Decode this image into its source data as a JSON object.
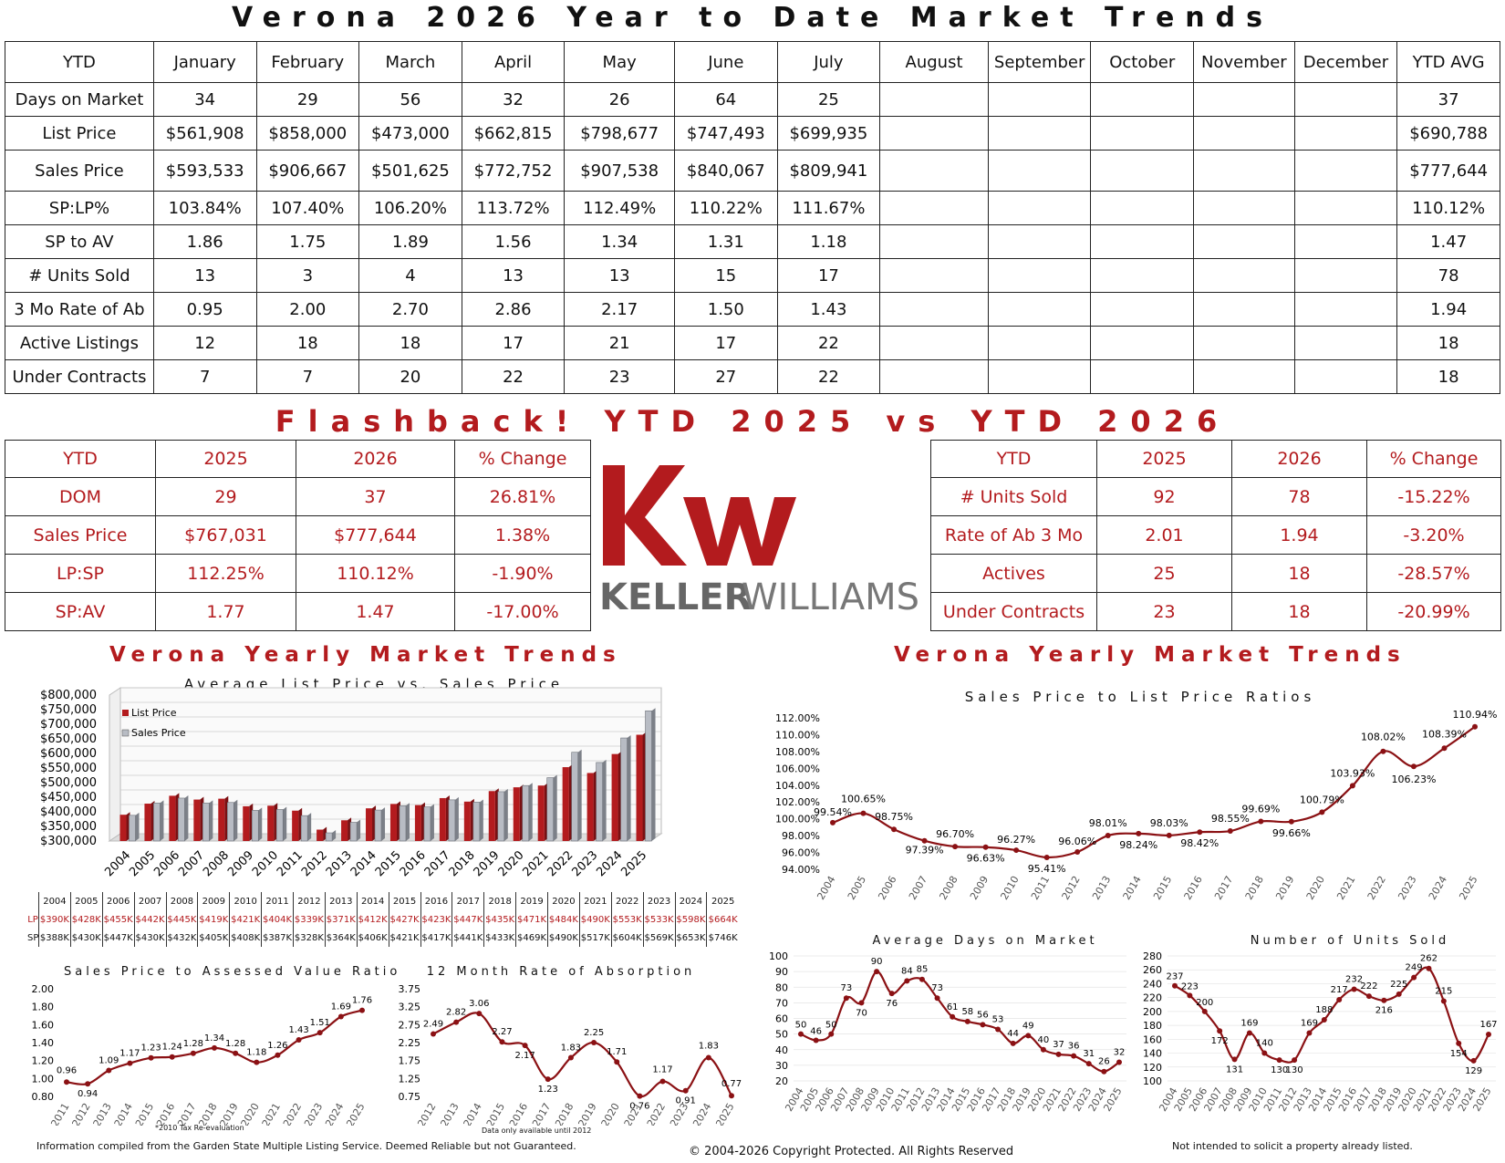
{
  "page_title": "Verona 2026 Year to Date Market Trends",
  "ytd_table": {
    "headers": [
      "YTD",
      "January",
      "February",
      "March",
      "April",
      "May",
      "June",
      "July",
      "August",
      "September",
      "October",
      "November",
      "December",
      "YTD AVG"
    ],
    "rows": [
      [
        "Days on Market",
        "34",
        "29",
        "56",
        "32",
        "26",
        "64",
        "25",
        "",
        "",
        "",
        "",
        "",
        "37"
      ],
      [
        "List Price",
        "$561,908",
        "$858,000",
        "$473,000",
        "$662,815",
        "$798,677",
        "$747,493",
        "$699,935",
        "",
        "",
        "",
        "",
        "",
        "$690,788"
      ],
      [
        "Sales Price",
        "$593,533",
        "$906,667",
        "$501,625",
        "$772,752",
        "$907,538",
        "$840,067",
        "$809,941",
        "",
        "",
        "",
        "",
        "",
        "$777,644"
      ],
      [
        "SP:LP%",
        "103.84%",
        "107.40%",
        "106.20%",
        "113.72%",
        "112.49%",
        "110.22%",
        "111.67%",
        "",
        "",
        "",
        "",
        "",
        "110.12%"
      ],
      [
        "SP to AV",
        "1.86",
        "1.75",
        "1.89",
        "1.56",
        "1.34",
        "1.31",
        "1.18",
        "",
        "",
        "",
        "",
        "",
        "1.47"
      ],
      [
        "# Units Sold",
        "13",
        "3",
        "4",
        "13",
        "13",
        "15",
        "17",
        "",
        "",
        "",
        "",
        "",
        "78"
      ],
      [
        "3 Mo Rate of Ab",
        "0.95",
        "2.00",
        "2.70",
        "2.86",
        "2.17",
        "1.50",
        "1.43",
        "",
        "",
        "",
        "",
        "",
        "1.94"
      ],
      [
        "Active Listings",
        "12",
        "18",
        "18",
        "17",
        "21",
        "17",
        "22",
        "",
        "",
        "",
        "",
        "",
        "18"
      ],
      [
        "Under Contracts",
        "7",
        "7",
        "20",
        "22",
        "23",
        "27",
        "22",
        "",
        "",
        "",
        "",
        "",
        "18"
      ]
    ]
  },
  "flashback_title": "Flashback!  YTD 2025 vs YTD 2026",
  "left_compare": {
    "headers": [
      "YTD",
      "2025",
      "2026",
      "% Change"
    ],
    "rows": [
      [
        "DOM",
        "29",
        "37",
        "26.81%"
      ],
      [
        "Sales Price",
        "$767,031",
        "$777,644",
        "1.38%"
      ],
      [
        "LP:SP",
        "112.25%",
        "110.12%",
        "-1.90%"
      ],
      [
        "SP:AV",
        "1.77",
        "1.47",
        "-17.00%"
      ]
    ]
  },
  "right_compare": {
    "headers": [
      "YTD",
      "2025",
      "2026",
      "% Change"
    ],
    "rows": [
      [
        "# Units Sold",
        "92",
        "78",
        "-15.22%"
      ],
      [
        "Rate of Ab 3 Mo",
        "2.01",
        "1.94",
        "-3.20%"
      ],
      [
        "Actives",
        "25",
        "18",
        "-28.57%"
      ],
      [
        "Under Contracts",
        "23",
        "18",
        "-20.99%"
      ]
    ]
  },
  "logo": {
    "text_bold": "KELLER",
    "text_light": "WILLIAMS",
    "mark": "kw",
    "color": "#b31b1e"
  },
  "yearly_title_left": "Verona Yearly Market Trends",
  "yearly_title_right": "Verona Yearly Market Trends",
  "price_table": {
    "years": [
      "2004",
      "2005",
      "2006",
      "2007",
      "2008",
      "2009",
      "2010",
      "2011",
      "2012",
      "2013",
      "2014",
      "2015",
      "2016",
      "2017",
      "2018",
      "2019",
      "2020",
      "2021",
      "2022",
      "2023",
      "2024",
      "2025"
    ],
    "lp_label": "LP",
    "sp_label": "SP",
    "lp": [
      "$390K",
      "$428K",
      "$455K",
      "$442K",
      "$445K",
      "$419K",
      "$421K",
      "$404K",
      "$339K",
      "$371K",
      "$412K",
      "$427K",
      "$423K",
      "$447K",
      "$435K",
      "$471K",
      "$484K",
      "$490K",
      "$553K",
      "$533K",
      "$598K",
      "$664K"
    ],
    "sp": [
      "$388K",
      "$430K",
      "$447K",
      "$430K",
      "$432K",
      "$405K",
      "$408K",
      "$387K",
      "$328K",
      "$364K",
      "$406K",
      "$421K",
      "$417K",
      "$441K",
      "$433K",
      "$469K",
      "$490K",
      "$517K",
      "$604K",
      "$569K",
      "$653K",
      "$746K"
    ]
  },
  "colors": {
    "red": "#b31b1e",
    "gray": "#b8bcc4",
    "line": "#8b1114"
  },
  "chart_data": [
    {
      "type": "bar",
      "title": "Average List Price vs. Sales Price",
      "categories": [
        "2004",
        "2005",
        "2006",
        "2007",
        "2008",
        "2009",
        "2010",
        "2011",
        "2012",
        "2013",
        "2014",
        "2015",
        "2016",
        "2017",
        "2018",
        "2019",
        "2020",
        "2021",
        "2022",
        "2023",
        "2024",
        "2025"
      ],
      "series": [
        {
          "name": "List Price",
          "values": [
            390,
            428,
            455,
            442,
            445,
            419,
            421,
            404,
            339,
            371,
            412,
            427,
            423,
            447,
            435,
            471,
            484,
            490,
            553,
            533,
            598,
            664
          ]
        },
        {
          "name": "Sales Price",
          "values": [
            388,
            430,
            447,
            430,
            432,
            405,
            408,
            387,
            328,
            364,
            406,
            421,
            417,
            441,
            433,
            469,
            490,
            517,
            604,
            569,
            653,
            746
          ]
        }
      ],
      "ylim": [
        300,
        800
      ],
      "yticks": [
        "$300,000",
        "$350,000",
        "$400,000",
        "$450,000",
        "$500,000",
        "$550,000",
        "$600,000",
        "$650,000",
        "$700,000",
        "$750,000",
        "$800,000"
      ],
      "legend": "top-left"
    },
    {
      "type": "line",
      "title": "Sales Price to List Price Ratios",
      "x": [
        "2004",
        "2005",
        "2006",
        "2007",
        "2008",
        "2009",
        "2010",
        "2011",
        "2012",
        "2013",
        "2014",
        "2015",
        "2016",
        "2017",
        "2018",
        "2019",
        "2020",
        "2021",
        "2022",
        "2023",
        "2024",
        "2025"
      ],
      "values": [
        99.54,
        100.65,
        98.75,
        97.39,
        96.7,
        96.63,
        96.27,
        95.41,
        96.06,
        98.01,
        98.24,
        98.03,
        98.42,
        98.55,
        99.69,
        99.66,
        100.79,
        103.93,
        108.02,
        106.23,
        108.39,
        110.94
      ],
      "labels": [
        "99.54%",
        "100.65%",
        "98.75%",
        "97.39%",
        "96.70%",
        "96.63%",
        "96.27%",
        "95.41%",
        "96.06%",
        "98.01%",
        "98.24%",
        "98.03%",
        "98.42%",
        "98.55%",
        "99.69%",
        "99.66%",
        "100.79%",
        "103.93%",
        "108.02%",
        "106.23%",
        "108.39%",
        "110.94%"
      ],
      "ylim": [
        94,
        112
      ],
      "yticks": [
        "94.00%",
        "96.00%",
        "98.00%",
        "100.00%",
        "102.00%",
        "104.00%",
        "106.00%",
        "108.00%",
        "110.00%",
        "112.00%"
      ]
    },
    {
      "type": "line",
      "title": "Sales Price to Assessed Value Ratio",
      "x": [
        "2011",
        "2012",
        "2013",
        "2014",
        "2015",
        "2016",
        "2017",
        "2018",
        "2019",
        "2020",
        "2021",
        "2022",
        "2023",
        "2024",
        "2025"
      ],
      "values": [
        0.96,
        0.94,
        1.09,
        1.17,
        1.23,
        1.24,
        1.28,
        1.34,
        1.28,
        1.18,
        1.26,
        1.43,
        1.51,
        1.69,
        1.76
      ],
      "labels": [
        "0.96",
        "0.94",
        "1.09",
        "1.17",
        "1.23",
        "1.24",
        "1.28",
        "1.34",
        "1.28",
        "1.18",
        "1.26",
        "1.43",
        "1.51",
        "1.69",
        "1.76"
      ],
      "ylim": [
        0.8,
        2.0
      ],
      "yticks": [
        "0.80",
        "1.00",
        "1.20",
        "1.40",
        "1.60",
        "1.80",
        "2.00"
      ],
      "note": "*2010 Tax Re-evaluation"
    },
    {
      "type": "line",
      "title": "12 Month Rate of Absorption",
      "x": [
        "2012",
        "2013",
        "2014",
        "2015",
        "2016",
        "2017",
        "2018",
        "2019",
        "2020",
        "2021",
        "2022",
        "2023",
        "2024",
        "2025"
      ],
      "values": [
        2.49,
        2.82,
        3.06,
        2.27,
        2.17,
        1.23,
        1.83,
        2.25,
        1.71,
        0.76,
        1.17,
        0.91,
        1.83,
        0.77
      ],
      "labels": [
        "2.49",
        "2.82",
        "3.06",
        "2.27",
        "2.17",
        "1.23",
        "1.83",
        "2.25",
        "1.71",
        "0.76",
        "1.17",
        "0.91",
        "1.83",
        "0.77"
      ],
      "ylim": [
        0.75,
        3.75
      ],
      "yticks": [
        "0.75",
        "1.25",
        "1.75",
        "2.25",
        "2.75",
        "3.25",
        "3.75"
      ],
      "note": "Data only available until 2012"
    },
    {
      "type": "line",
      "title": "Average Days on Market",
      "x": [
        "2004",
        "2005",
        "2006",
        "2007",
        "2008",
        "2009",
        "2010",
        "2011",
        "2012",
        "2013",
        "2014",
        "2015",
        "2016",
        "2017",
        "2018",
        "2019",
        "2020",
        "2021",
        "2022",
        "2023",
        "2024",
        "2025"
      ],
      "values": [
        50,
        46,
        50,
        73,
        70,
        90,
        76,
        84,
        85,
        73,
        61,
        58,
        56,
        53,
        44,
        49,
        40,
        37,
        36,
        31,
        26,
        32
      ],
      "labels": [
        "50",
        "46",
        "50",
        "73",
        "70",
        "90",
        "76",
        "84",
        "85",
        "73",
        "61",
        "58",
        "56",
        "53",
        "44",
        "49",
        "40",
        "37",
        "36",
        "31",
        "26",
        "32"
      ],
      "ylim": [
        20,
        100
      ],
      "yticks": [
        "20",
        "30",
        "40",
        "50",
        "60",
        "70",
        "80",
        "90",
        "100"
      ]
    },
    {
      "type": "line",
      "title": "Number of Units Sold",
      "x": [
        "2004",
        "2005",
        "2006",
        "2007",
        "2008",
        "2009",
        "2010",
        "2011",
        "2012",
        "2013",
        "2014",
        "2015",
        "2016",
        "2017",
        "2018",
        "2019",
        "2020",
        "2021",
        "2022",
        "2023",
        "2024",
        "2025"
      ],
      "values": [
        237,
        223,
        200,
        172,
        131,
        169,
        140,
        130,
        130,
        169,
        188,
        217,
        232,
        222,
        216,
        225,
        249,
        262,
        215,
        154,
        129,
        167
      ],
      "labels": [
        "237",
        "223",
        "200",
        "172",
        "131",
        "169",
        "140",
        "130",
        "130",
        "169",
        "188",
        "217",
        "232",
        "222",
        "216",
        "225",
        "249",
        "262",
        "215",
        "154",
        "129",
        "167"
      ],
      "ylim": [
        100,
        280
      ],
      "yticks": [
        "100",
        "120",
        "140",
        "160",
        "180",
        "200",
        "220",
        "240",
        "260",
        "280"
      ]
    }
  ],
  "footer": {
    "left": "Information compiled from the Garden State Multiple Listing Service.  Deemed Reliable but not Guaranteed.",
    "center": "© 2004-2026 Copyright Protected.  All Rights Reserved",
    "right": "Not intended to solicit a property already listed."
  }
}
